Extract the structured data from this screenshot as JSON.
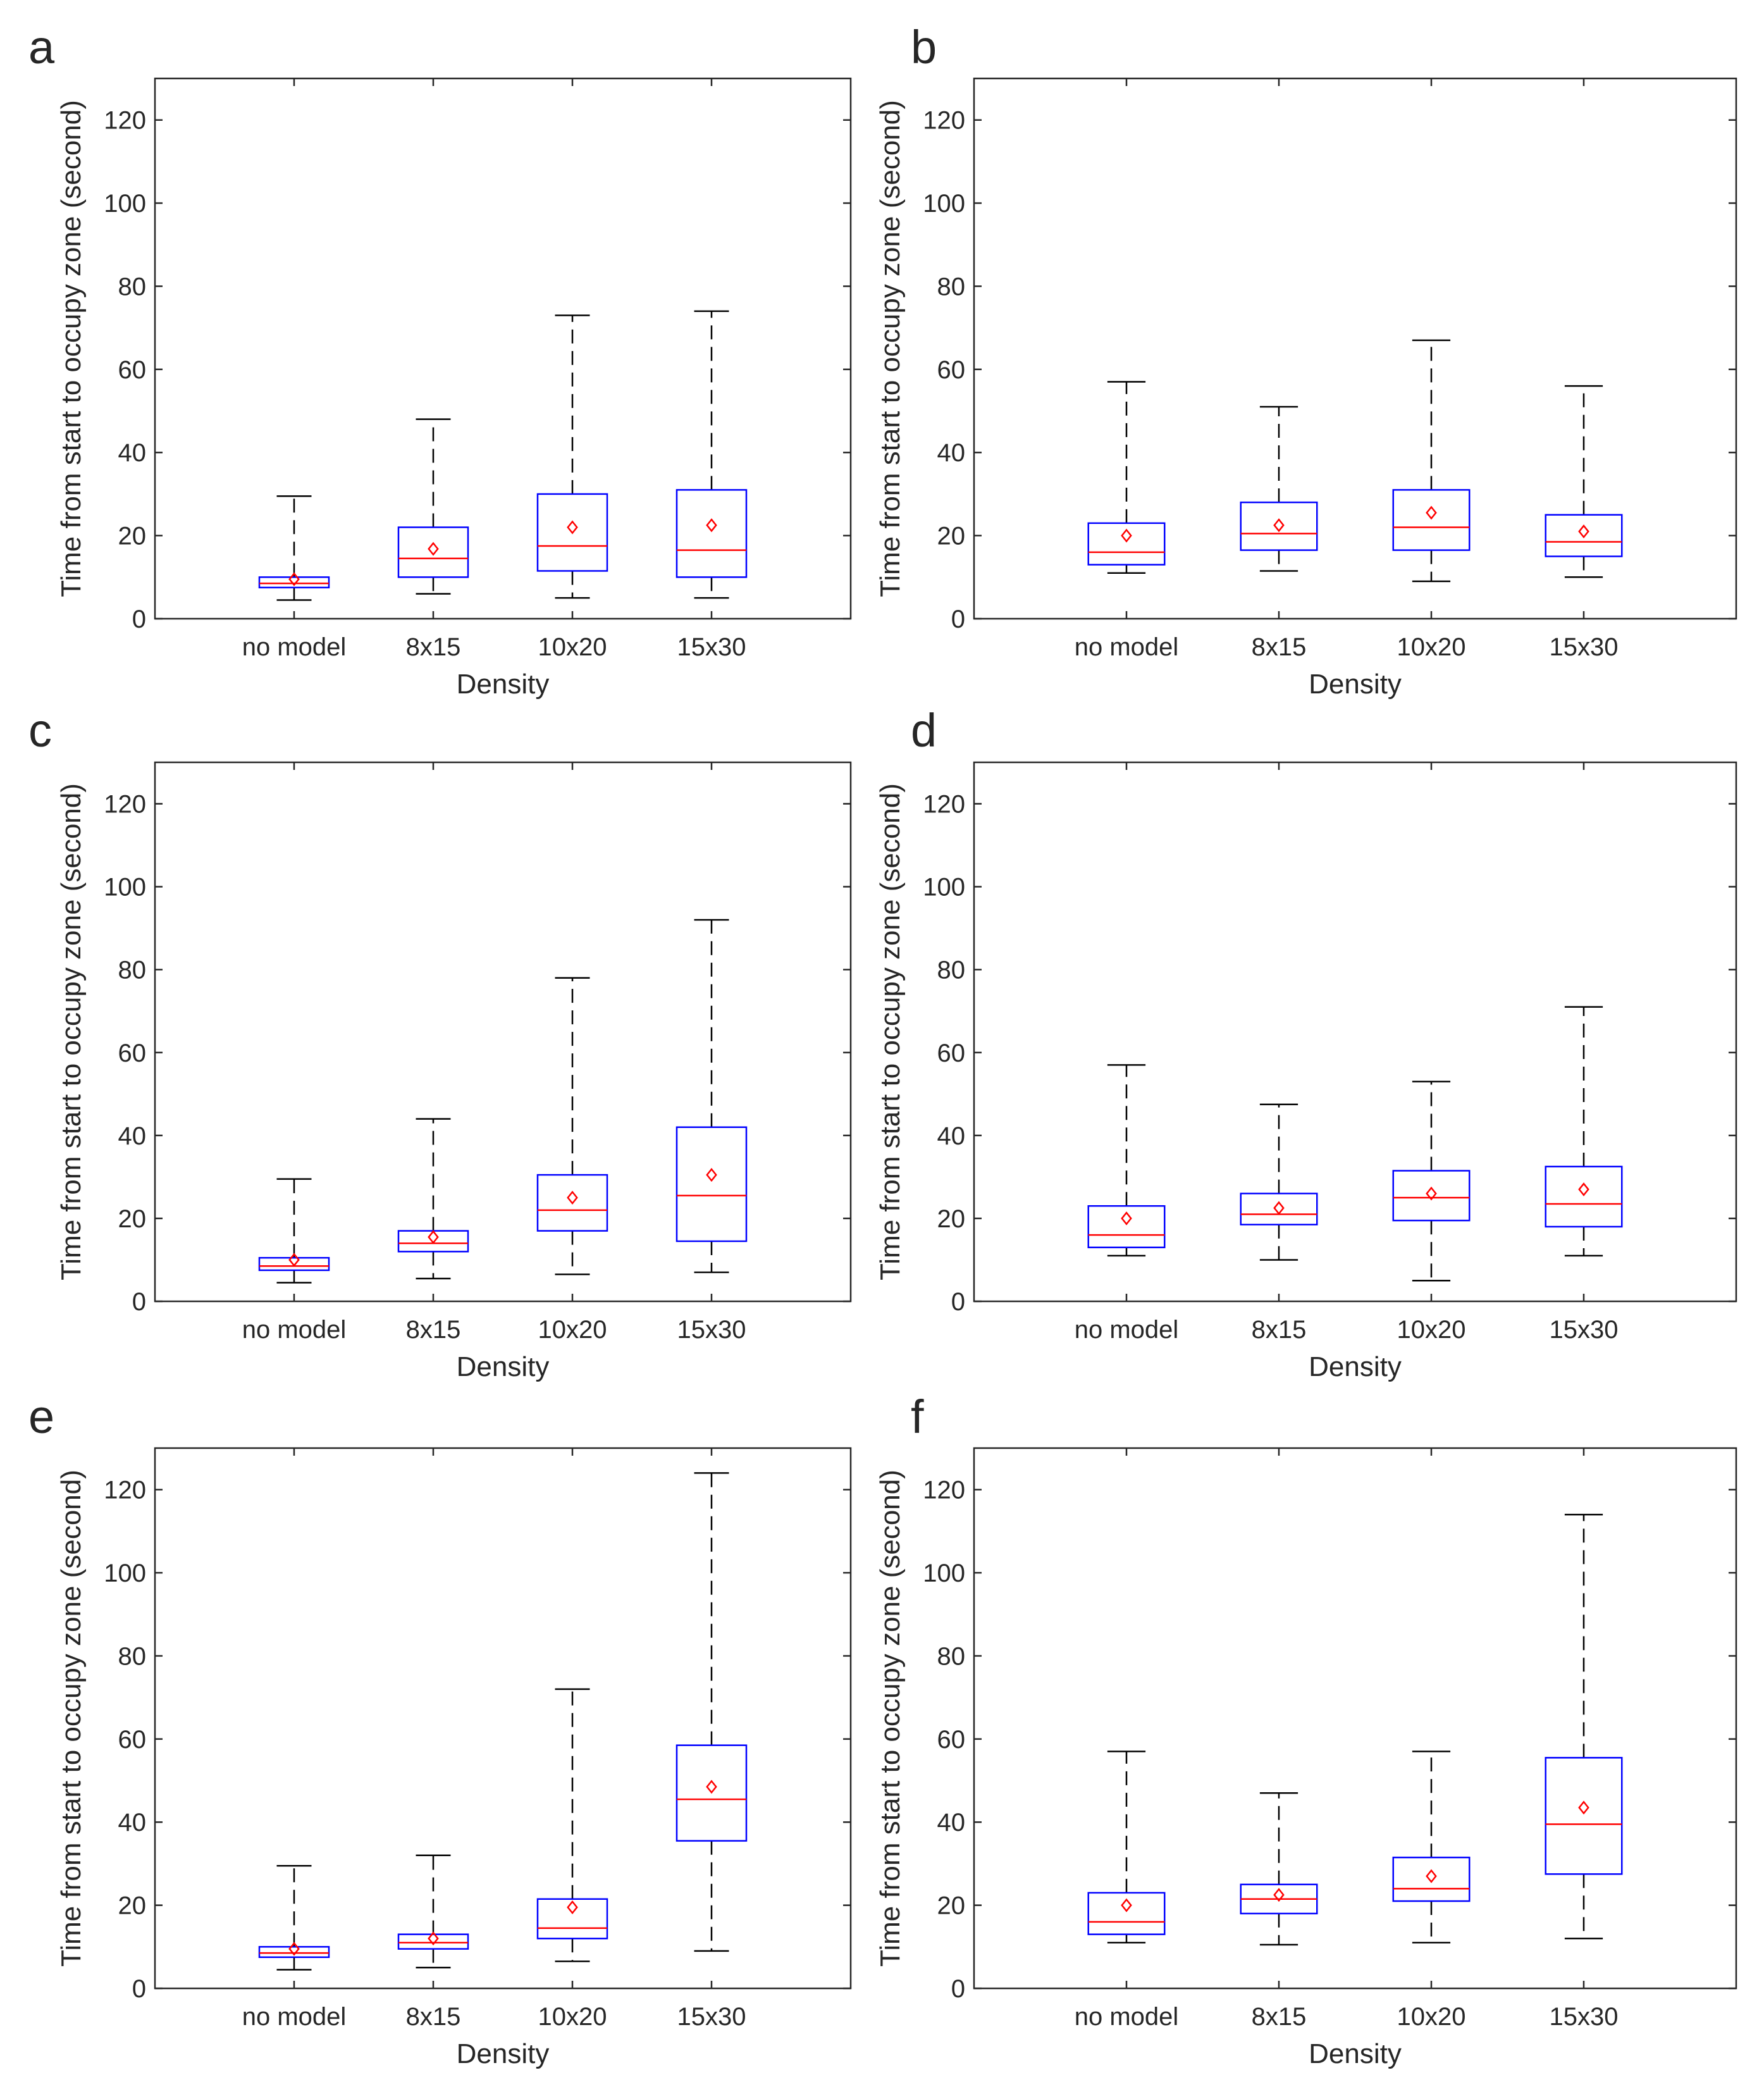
{
  "chart_data": [
    {
      "panel": "a",
      "type": "boxplot",
      "xlabel": "Density",
      "ylabel": "Time from start to occupy zone (second)",
      "ylim": [
        0,
        130
      ],
      "yticks": [
        0,
        20,
        40,
        60,
        80,
        100,
        120
      ],
      "categories": [
        "no model",
        "8x15",
        "10x20",
        "15x30"
      ],
      "boxes": [
        {
          "whisker_low": 4.5,
          "q1": 7.5,
          "median": 8.5,
          "q3": 10,
          "whisker_high": 29.5,
          "mean": 9.5
        },
        {
          "whisker_low": 6,
          "q1": 10,
          "median": 14.5,
          "q3": 22,
          "whisker_high": 48,
          "mean": 16.8
        },
        {
          "whisker_low": 5,
          "q1": 11.5,
          "median": 17.5,
          "q3": 30,
          "whisker_high": 73,
          "mean": 22
        },
        {
          "whisker_low": 5,
          "q1": 10,
          "median": 16.5,
          "q3": 31,
          "whisker_high": 74,
          "mean": 22.5
        }
      ]
    },
    {
      "panel": "b",
      "type": "boxplot",
      "xlabel": "Density",
      "ylabel": "Time from start to occupy zone (second)",
      "ylim": [
        0,
        130
      ],
      "yticks": [
        0,
        20,
        40,
        60,
        80,
        100,
        120
      ],
      "categories": [
        "no model",
        "8x15",
        "10x20",
        "15x30"
      ],
      "boxes": [
        {
          "whisker_low": 11,
          "q1": 13,
          "median": 16,
          "q3": 23,
          "whisker_high": 57,
          "mean": 20
        },
        {
          "whisker_low": 11.5,
          "q1": 16.5,
          "median": 20.5,
          "q3": 28,
          "whisker_high": 51,
          "mean": 22.5
        },
        {
          "whisker_low": 9,
          "q1": 16.5,
          "median": 22,
          "q3": 31,
          "whisker_high": 67,
          "mean": 25.5
        },
        {
          "whisker_low": 10,
          "q1": 15,
          "median": 18.5,
          "q3": 25,
          "whisker_high": 56,
          "mean": 21
        }
      ]
    },
    {
      "panel": "c",
      "type": "boxplot",
      "xlabel": "Density",
      "ylabel": "Time from start to occupy zone (second)",
      "ylim": [
        0,
        130
      ],
      "yticks": [
        0,
        20,
        40,
        60,
        80,
        100,
        120
      ],
      "categories": [
        "no model",
        "8x15",
        "10x20",
        "15x30"
      ],
      "boxes": [
        {
          "whisker_low": 4.5,
          "q1": 7.5,
          "median": 8.5,
          "q3": 10.5,
          "whisker_high": 29.5,
          "mean": 10
        },
        {
          "whisker_low": 5.5,
          "q1": 12,
          "median": 14,
          "q3": 17,
          "whisker_high": 44,
          "mean": 15.5
        },
        {
          "whisker_low": 6.5,
          "q1": 17,
          "median": 22,
          "q3": 30.5,
          "whisker_high": 78,
          "mean": 25
        },
        {
          "whisker_low": 7,
          "q1": 14.5,
          "median": 25.5,
          "q3": 42,
          "whisker_high": 92,
          "mean": 30.5
        }
      ]
    },
    {
      "panel": "d",
      "type": "boxplot",
      "xlabel": "Density",
      "ylabel": "Time from start to occupy zone (second)",
      "ylim": [
        0,
        130
      ],
      "yticks": [
        0,
        20,
        40,
        60,
        80,
        100,
        120
      ],
      "categories": [
        "no model",
        "8x15",
        "10x20",
        "15x30"
      ],
      "boxes": [
        {
          "whisker_low": 11,
          "q1": 13,
          "median": 16,
          "q3": 23,
          "whisker_high": 57,
          "mean": 20
        },
        {
          "whisker_low": 10,
          "q1": 18.5,
          "median": 21,
          "q3": 26,
          "whisker_high": 47.5,
          "mean": 22.5
        },
        {
          "whisker_low": 5,
          "q1": 19.5,
          "median": 25,
          "q3": 31.5,
          "whisker_high": 53,
          "mean": 26
        },
        {
          "whisker_low": 11,
          "q1": 18,
          "median": 23.5,
          "q3": 32.5,
          "whisker_high": 71,
          "mean": 27
        }
      ]
    },
    {
      "panel": "e",
      "type": "boxplot",
      "xlabel": "Density",
      "ylabel": "Time from start to occupy zone (second)",
      "ylim": [
        0,
        130
      ],
      "yticks": [
        0,
        20,
        40,
        60,
        80,
        100,
        120
      ],
      "categories": [
        "no model",
        "8x15",
        "10x20",
        "15x30"
      ],
      "boxes": [
        {
          "whisker_low": 4.5,
          "q1": 7.5,
          "median": 8.5,
          "q3": 10,
          "whisker_high": 29.5,
          "mean": 9.5
        },
        {
          "whisker_low": 5,
          "q1": 9.5,
          "median": 11,
          "q3": 13,
          "whisker_high": 32,
          "mean": 12
        },
        {
          "whisker_low": 6.5,
          "q1": 12,
          "median": 14.5,
          "q3": 21.5,
          "whisker_high": 72,
          "mean": 19.5
        },
        {
          "whisker_low": 9,
          "q1": 35.5,
          "median": 45.5,
          "q3": 58.5,
          "whisker_high": 124,
          "mean": 48.5
        }
      ]
    },
    {
      "panel": "f",
      "type": "boxplot",
      "xlabel": "Density",
      "ylabel": "Time from start to occupy zone (second)",
      "ylim": [
        0,
        130
      ],
      "yticks": [
        0,
        20,
        40,
        60,
        80,
        100,
        120
      ],
      "categories": [
        "no model",
        "8x15",
        "10x20",
        "15x30"
      ],
      "boxes": [
        {
          "whisker_low": 11,
          "q1": 13,
          "median": 16,
          "q3": 23,
          "whisker_high": 57,
          "mean": 20
        },
        {
          "whisker_low": 10.5,
          "q1": 18,
          "median": 21.5,
          "q3": 25,
          "whisker_high": 47,
          "mean": 22.5
        },
        {
          "whisker_low": 11,
          "q1": 21,
          "median": 24,
          "q3": 31.5,
          "whisker_high": 57,
          "mean": 27
        },
        {
          "whisker_low": 12,
          "q1": 27.5,
          "median": 39.5,
          "q3": 55.5,
          "whisker_high": 114,
          "mean": 43.5
        }
      ]
    }
  ],
  "colors": {
    "box": "#0000ff",
    "median": "#ff0000",
    "mean_marker": "#ff0000",
    "whisker": "#000000",
    "axis": "#262626"
  }
}
